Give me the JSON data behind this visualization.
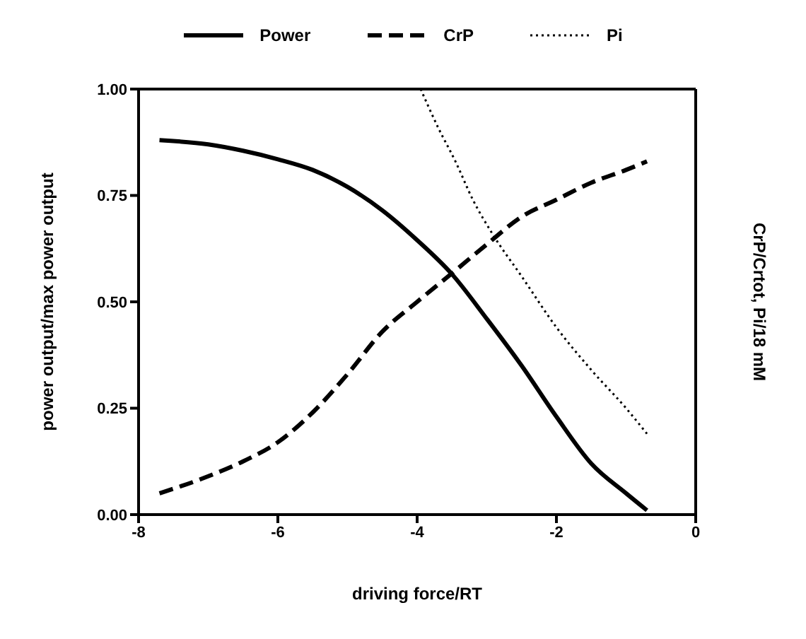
{
  "chart_data": {
    "type": "line",
    "xlabel": "driving force/RT",
    "ylabel": "power output/max power output",
    "y2label": "CrP/Crtot, Pi/18 mM",
    "xlim": [
      -8,
      0
    ],
    "xticks": [
      -8,
      -6,
      -4,
      -2,
      0
    ],
    "ylim": [
      0,
      1
    ],
    "yticks": [
      {
        "value": 0,
        "label": "0.00"
      },
      {
        "value": 0.25,
        "label": "0.25"
      },
      {
        "value": 0.5,
        "label": "0.50"
      },
      {
        "value": 0.75,
        "label": "0.75"
      },
      {
        "value": 1,
        "label": "1.00"
      }
    ],
    "legend": "top",
    "marker": "none",
    "series": [
      {
        "name": "Power",
        "color": "#000000",
        "line_style": "solid",
        "x": [
          -7.7,
          -7,
          -6.5,
          -6,
          -5.5,
          -5,
          -4.5,
          -4,
          -3.5,
          -3,
          -2.5,
          -2,
          -1.5,
          -1,
          -0.7
        ],
        "values": [
          0.88,
          0.87,
          0.855,
          0.835,
          0.81,
          0.77,
          0.715,
          0.645,
          0.565,
          0.46,
          0.35,
          0.23,
          0.12,
          0.05,
          0.01
        ]
      },
      {
        "name": "CrP",
        "color": "#000000",
        "line_style": "dashed",
        "x": [
          -7.7,
          -7,
          -6.5,
          -6,
          -5.5,
          -5,
          -4.5,
          -4,
          -3.5,
          -3,
          -2.5,
          -2,
          -1.5,
          -1,
          -0.7
        ],
        "values": [
          0.05,
          0.09,
          0.125,
          0.17,
          0.24,
          0.33,
          0.43,
          0.5,
          0.567,
          0.635,
          0.7,
          0.74,
          0.78,
          0.81,
          0.83
        ]
      },
      {
        "name": "Pi",
        "color": "#000000",
        "line_style": "dotted",
        "x": [
          -3.95,
          -3.7,
          -3.45,
          -3.2,
          -2.92,
          -2.5,
          -2,
          -1.5,
          -1,
          -0.7
        ],
        "values": [
          1.0,
          0.91,
          0.83,
          0.74,
          0.66,
          0.56,
          0.44,
          0.34,
          0.25,
          0.19
        ]
      }
    ]
  }
}
